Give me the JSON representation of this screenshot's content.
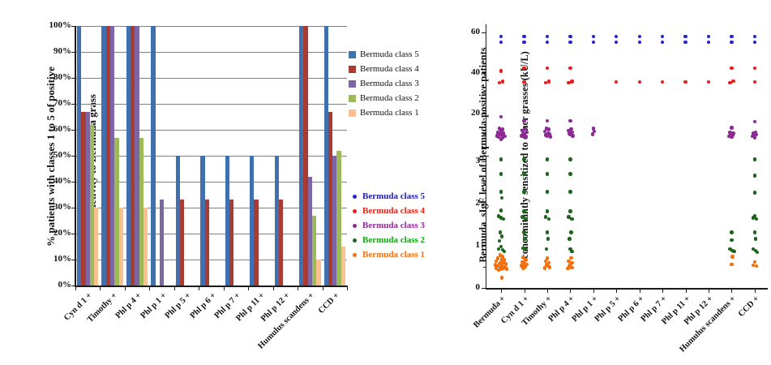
{
  "chart_data": [
    {
      "type": "bar",
      "title": "",
      "ylabel": "% patients with classes 1 to 5 of positive reactivity to Bermuda grass",
      "ylabel_lines": [
        "% patients with classes 1 to 5 of positive",
        "reactivity to Bermuda grass"
      ],
      "xlabel": "",
      "ylim": [
        0,
        100
      ],
      "y_ticks": [
        "100%",
        "90%",
        "80%",
        "70%",
        "60%",
        "50%",
        "40%",
        "30%",
        "20%",
        "10%",
        "0%"
      ],
      "grid": true,
      "grid_color": "#7f7f7f",
      "axis_color": "#1a1a1a",
      "legend_position": "right",
      "categories": [
        "Cyn d 1 +",
        "Timothy +",
        "Phl p 4 +",
        "Phl p 1 +",
        "Phl p 5 +",
        "Phl p 6 +",
        "Phl p 7 +",
        "Phl p 11 +",
        "Phl p 12 +",
        "Humulus scandens +",
        "CCD +"
      ],
      "series": [
        {
          "name": "Bermuda class 5",
          "color": "#4170B0",
          "values": [
            100,
            100,
            100,
            100,
            50,
            50,
            50,
            50,
            50,
            100,
            100
          ]
        },
        {
          "name": "Bermuda class 4",
          "color": "#A83C32",
          "values": [
            67,
            100,
            100,
            0,
            33,
            33,
            33,
            33,
            33,
            100,
            67
          ]
        },
        {
          "name": "Bermuda class 3",
          "color": "#7D65A6",
          "values": [
            67,
            100,
            100,
            33,
            0,
            0,
            0,
            0,
            0,
            42,
            50
          ]
        },
        {
          "name": "Bermuda class 2",
          "color": "#9BBB59",
          "values": [
            62,
            57,
            57,
            0,
            0,
            0,
            0,
            0,
            0,
            27,
            52
          ]
        },
        {
          "name": "Bermuda class 1",
          "color": "#FAC090",
          "values": [
            30,
            30,
            30,
            0,
            0,
            0,
            0,
            0,
            0,
            10,
            15
          ]
        }
      ]
    },
    {
      "type": "scatter",
      "title": "",
      "ylabel": "Bermuda sIgE level of Bermuda-positive patients concomitantly sensitized to other grasses (kU/L)",
      "ylabel_lines": [
        "Bermuda  sIgE level of Bermuda-positive patients",
        "concomitantly sensitized to other grasses (kU/L)"
      ],
      "xlabel": "",
      "axis_break": true,
      "upper_axis": {
        "ticks": [
          60,
          40,
          20
        ],
        "minor_ticks": [
          50,
          30,
          10
        ],
        "range": [
          3.2,
          64
        ]
      },
      "lower_axis": {
        "ticks": [
          3,
          2,
          1,
          0
        ],
        "minor_ticks": [
          2.5,
          1.5,
          0.5
        ],
        "range": [
          0,
          3.13
        ]
      },
      "grid": false,
      "axis_color": "#1a1a1a",
      "legend_position": "right",
      "categories": [
        "Bermuda +",
        "Cyn d 1 +",
        "Timothy +",
        "Phl p 4 +",
        "Phl p 1 +",
        "Phl p 5 +",
        "Phl p 6 +",
        "Phl p 7 +",
        "Phl p 11 +",
        "Phl p 12 +",
        "Humulus scandens +",
        "CCD +"
      ],
      "classes": [
        {
          "key": "c5",
          "name": "Bermuda class 5",
          "dot": "#2525D2",
          "text": "#1C1CB0"
        },
        {
          "key": "c4",
          "name": "Bermuda class 4",
          "dot": "#EC1C1C",
          "text": "#E42217"
        },
        {
          "key": "c3",
          "name": "Bermuda class 3",
          "dot": "#8E2A96",
          "text": "#8E2A96"
        },
        {
          "key": "c2",
          "name": "Bermuda class 2",
          "dot": "#1E651E",
          "text": "#12A212"
        },
        {
          "key": "c1",
          "name": "Bermuda class 1",
          "dot": "#F2700F",
          "text": "#F2700F"
        }
      ],
      "points": [
        {
          "c5": [
            [
              0,
              58
            ],
            [
              0,
              55.2
            ]
          ],
          "c4": [
            [
              0,
              41
            ],
            [
              -2.5,
              35.2
            ],
            [
              2,
              35.8
            ]
          ],
          "c3": [
            [
              0,
              18.5
            ],
            [
              -2,
              12.6
            ],
            [
              2,
              12.2
            ],
            [
              0,
              11.4
            ],
            [
              -4,
              10.6
            ],
            [
              3,
              10.2
            ],
            [
              -1,
              9.8
            ],
            [
              1,
              9.3
            ],
            [
              -5,
              9
            ],
            [
              5,
              8.8
            ],
            [
              -3,
              8.4
            ],
            [
              2,
              8
            ],
            [
              0,
              7.4
            ]
          ],
          "c2": [
            [
              0,
              3.05
            ],
            [
              0,
              2.7
            ],
            [
              0,
              2.28
            ],
            [
              1,
              2.14
            ],
            [
              0,
              1.84
            ],
            [
              -3,
              1.7
            ],
            [
              0,
              1.66
            ],
            [
              3,
              1.64
            ],
            [
              -1,
              1.32
            ],
            [
              1,
              1.22
            ],
            [
              -2,
              1.12
            ],
            [
              0,
              0.98
            ],
            [
              -3,
              0.92
            ],
            [
              2,
              0.9
            ],
            [
              4,
              0.86
            ]
          ],
          "c1": [
            [
              -1,
              0.78
            ],
            [
              2,
              0.74
            ],
            [
              -4,
              0.7
            ],
            [
              1,
              0.68
            ],
            [
              4,
              0.66
            ],
            [
              -6,
              0.63
            ],
            [
              0,
              0.62
            ],
            [
              3,
              0.6
            ],
            [
              -2,
              0.58
            ],
            [
              6,
              0.57
            ],
            [
              -7,
              0.55
            ],
            [
              1,
              0.54
            ],
            [
              -4,
              0.52
            ],
            [
              2,
              0.5
            ],
            [
              5,
              0.5
            ],
            [
              -1,
              0.48
            ],
            [
              -6,
              0.47
            ],
            [
              3,
              0.46
            ],
            [
              7,
              0.45
            ],
            [
              0,
              0.44
            ],
            [
              -3,
              0.42
            ],
            [
              1,
              0.24
            ]
          ]
        },
        {
          "c5": [
            [
              0,
              58
            ],
            [
              0,
              55.2
            ]
          ],
          "c4": [
            [
              0,
              42.5
            ],
            [
              0,
              35.5
            ]
          ],
          "c3": [
            [
              0,
              16.5
            ],
            [
              1,
              12.4
            ],
            [
              -2,
              11.6
            ],
            [
              3,
              10.8
            ],
            [
              -1,
              10
            ],
            [
              0,
              9.4
            ],
            [
              -3,
              9
            ],
            [
              2,
              8.6
            ]
          ],
          "c2": [
            [
              0,
              3.05
            ],
            [
              0,
              2.7
            ],
            [
              0,
              2.28
            ],
            [
              0,
              1.82
            ],
            [
              -2,
              1.68
            ],
            [
              2,
              1.64
            ],
            [
              0,
              1.32
            ],
            [
              1,
              1.16
            ],
            [
              -1,
              0.94
            ],
            [
              2,
              0.9
            ]
          ],
          "c1": [
            [
              -1,
              0.72
            ],
            [
              2,
              0.66
            ],
            [
              -2,
              0.62
            ],
            [
              0,
              0.58
            ],
            [
              3,
              0.56
            ],
            [
              -3,
              0.53
            ],
            [
              1,
              0.5
            ],
            [
              -1,
              0.47
            ]
          ]
        },
        {
          "c5": [
            [
              0,
              58
            ],
            [
              0,
              55.2
            ]
          ],
          "c4": [
            [
              0,
              42.5
            ],
            [
              -2,
              35.3
            ],
            [
              2,
              35.8
            ]
          ],
          "c3": [
            [
              0,
              16.5
            ],
            [
              -1,
              12.6
            ],
            [
              2,
              12.2
            ],
            [
              -3,
              11.2
            ],
            [
              1,
              10.4
            ],
            [
              3,
              9.8
            ],
            [
              -2,
              9.4
            ],
            [
              0,
              9
            ],
            [
              4,
              8.6
            ]
          ],
          "c2": [
            [
              0,
              3.05
            ],
            [
              0,
              2.7
            ],
            [
              0,
              2.28
            ],
            [
              0,
              1.82
            ],
            [
              -2,
              1.68
            ],
            [
              2,
              1.64
            ],
            [
              0,
              1.32
            ],
            [
              1,
              1.16
            ],
            [
              -1,
              0.92
            ]
          ],
          "c1": [
            [
              0,
              0.7
            ],
            [
              -2,
              0.63
            ],
            [
              2,
              0.6
            ],
            [
              -1,
              0.55
            ],
            [
              1,
              0.52
            ],
            [
              3,
              0.49
            ],
            [
              -3,
              0.47
            ]
          ]
        },
        {
          "c5": [
            [
              0,
              58
            ],
            [
              0,
              55.2
            ]
          ],
          "c4": [
            [
              0,
              42.5
            ],
            [
              -2,
              35.3
            ],
            [
              2,
              35.8
            ]
          ],
          "c3": [
            [
              0,
              16.5
            ],
            [
              1,
              12.4
            ],
            [
              -2,
              11.6
            ],
            [
              2,
              10.8
            ],
            [
              -1,
              10.2
            ],
            [
              0,
              9.6
            ],
            [
              3,
              9
            ]
          ],
          "c2": [
            [
              0,
              3.05
            ],
            [
              0,
              2.7
            ],
            [
              0,
              2.28
            ],
            [
              0,
              1.82
            ],
            [
              -2,
              1.68
            ],
            [
              2,
              1.64
            ],
            [
              1,
              1.32
            ],
            [
              -1,
              1.16
            ],
            [
              0,
              0.92
            ],
            [
              2,
              0.87
            ]
          ],
          "c1": [
            [
              1,
              0.71
            ],
            [
              -2,
              0.64
            ],
            [
              2,
              0.6
            ],
            [
              0,
              0.56
            ],
            [
              -1,
              0.52
            ],
            [
              2,
              0.48
            ],
            [
              -3,
              0.46
            ]
          ]
        },
        {
          "c5": [
            [
              0,
              58
            ],
            [
              0,
              55.2
            ]
          ],
          "c3": [
            [
              0,
              12.6
            ],
            [
              1,
              11.2
            ],
            [
              -1,
              9.8
            ]
          ]
        },
        {
          "c5": [
            [
              0,
              58
            ],
            [
              0,
              55.2
            ]
          ],
          "c4": [
            [
              0,
              35.5
            ]
          ]
        },
        {
          "c5": [
            [
              0,
              58
            ],
            [
              0,
              55.2
            ]
          ],
          "c4": [
            [
              0,
              35.5
            ]
          ]
        },
        {
          "c5": [
            [
              0,
              58
            ],
            [
              0,
              55.2
            ]
          ],
          "c4": [
            [
              0,
              35.5
            ]
          ]
        },
        {
          "c5": [
            [
              0,
              58
            ],
            [
              0,
              55.2
            ]
          ],
          "c4": [
            [
              0,
              35.5
            ]
          ]
        },
        {
          "c5": [
            [
              0,
              58
            ],
            [
              0,
              55.2
            ]
          ],
          "c4": [
            [
              0,
              35.5
            ]
          ]
        },
        {
          "c5": [
            [
              0,
              58
            ],
            [
              0,
              55.2
            ]
          ],
          "c4": [
            [
              0,
              42.5
            ],
            [
              -2,
              35.3
            ],
            [
              2,
              36
            ]
          ],
          "c3": [
            [
              0,
              13
            ],
            [
              -2,
              10.6
            ],
            [
              2,
              10.2
            ],
            [
              -1,
              9.6
            ],
            [
              1,
              9.2
            ],
            [
              -3,
              8.8
            ],
            [
              0,
              8.4
            ]
          ],
          "c2": [
            [
              0,
              1.32
            ],
            [
              0,
              1.14
            ],
            [
              -2,
              0.92
            ],
            [
              1,
              0.88
            ],
            [
              3,
              0.86
            ]
          ],
          "c1": [
            [
              1,
              0.74
            ],
            [
              0,
              0.56
            ]
          ]
        },
        {
          "c5": [
            [
              0,
              58
            ],
            [
              0,
              55.2
            ]
          ],
          "c4": [
            [
              0,
              42.5
            ],
            [
              0,
              35.5
            ]
          ],
          "c3": [
            [
              0,
              16
            ],
            [
              1,
              10.8
            ],
            [
              -2,
              10.2
            ],
            [
              2,
              9.6
            ],
            [
              -1,
              9.2
            ],
            [
              -3,
              8.8
            ],
            [
              0,
              8.2
            ]
          ],
          "c2": [
            [
              0,
              3.05
            ],
            [
              0,
              2.66
            ],
            [
              0,
              2.26
            ],
            [
              0,
              1.7
            ],
            [
              -2,
              1.66
            ],
            [
              2,
              1.63
            ],
            [
              0,
              1.32
            ],
            [
              1,
              1.16
            ],
            [
              -2,
              0.92
            ],
            [
              1,
              0.88
            ],
            [
              3,
              0.85
            ]
          ],
          "c1": [
            [
              0,
              0.62
            ],
            [
              -2,
              0.54
            ],
            [
              2,
              0.52
            ]
          ]
        }
      ]
    }
  ]
}
